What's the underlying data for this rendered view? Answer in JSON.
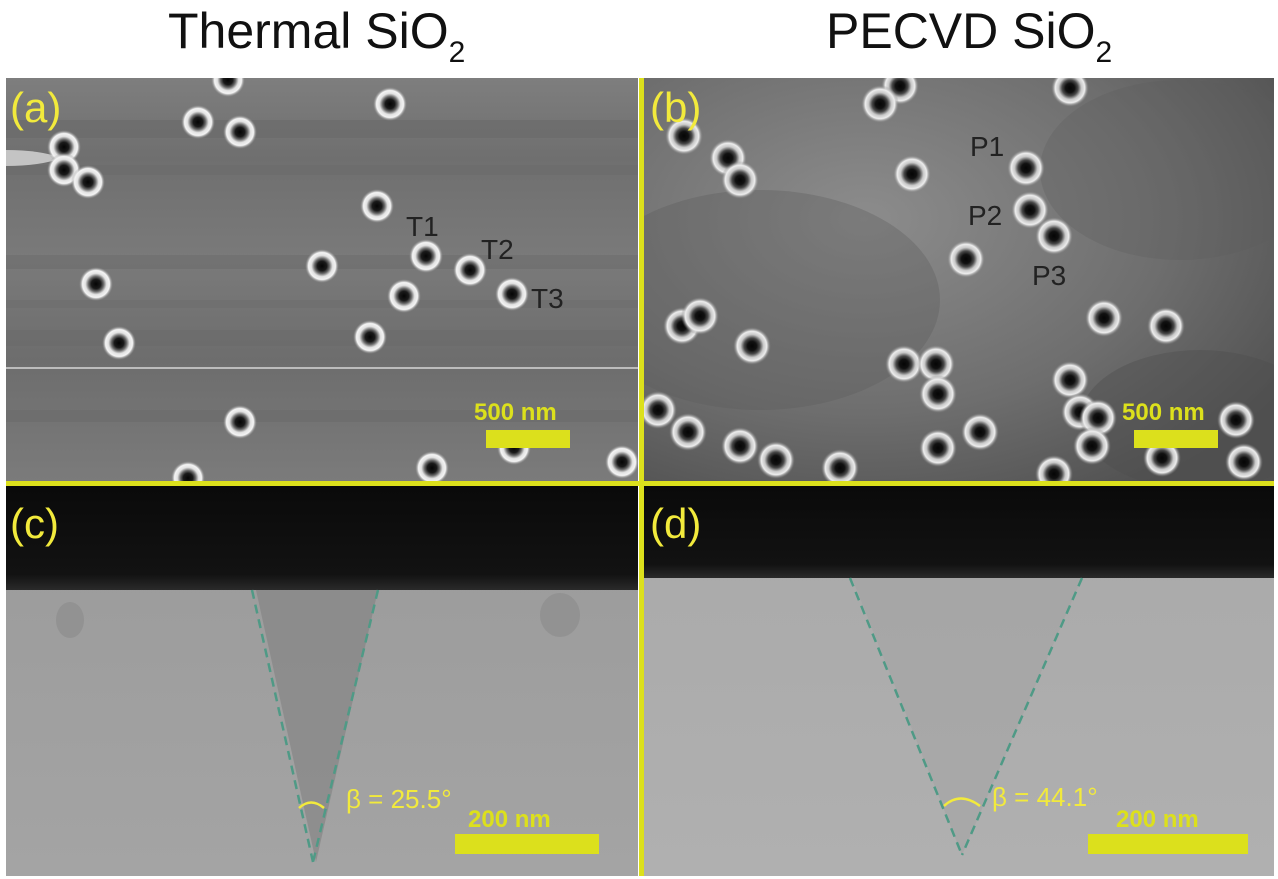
{
  "headings": {
    "left": {
      "main": "Thermal SiO",
      "sub": "2"
    },
    "right": {
      "main": "PECVD  SiO",
      "sub": "2"
    }
  },
  "panels": {
    "a": {
      "label": "(a)",
      "scale_text": "500 nm",
      "pore_labels": [
        "T1",
        "T2",
        "T3"
      ]
    },
    "b": {
      "label": "(b)",
      "scale_text": "500 nm",
      "pore_labels": [
        "P1",
        "P2",
        "P3"
      ]
    },
    "c": {
      "label": "(c)",
      "scale_text": "200 nm",
      "angle_text": "β = 25.5°"
    },
    "d": {
      "label": "(d)",
      "scale_text": "200 nm",
      "angle_text": "β = 44.1°"
    }
  },
  "colors": {
    "accent": "#dce01c",
    "label_yellow": "#f2ea3c",
    "annotation_dark": "#222222",
    "dashed_line": "#4f9a86"
  }
}
